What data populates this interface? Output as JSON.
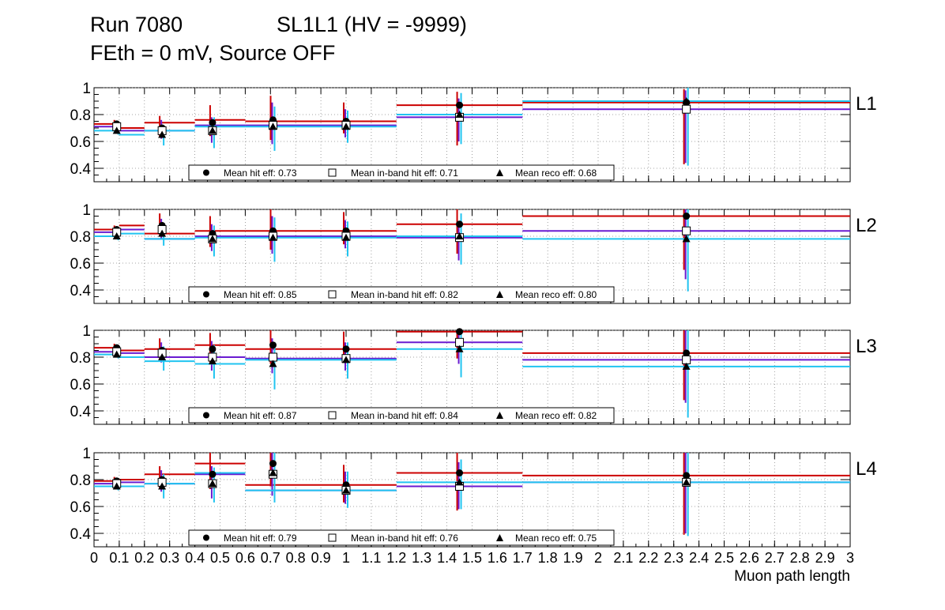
{
  "title": {
    "run": "Run 7080",
    "chamber": "SL1L1 (HV = -9999)",
    "conditions": "FEth = 0 mV, Source OFF"
  },
  "chart_data": {
    "type": "scatter",
    "xlabel": "Muon path length",
    "xlim": [
      0,
      3
    ],
    "ylim": [
      0.3,
      1.0
    ],
    "x_tick_labels": [
      "0",
      "0.1",
      "0.2",
      "0.3",
      "0.4",
      "0.5",
      "0.6",
      "0.7",
      "0.8",
      "0.9",
      "1",
      "1.1",
      "1.2",
      "1.3",
      "1.4",
      "1.5",
      "1.6",
      "1.7",
      "1.8",
      "1.9",
      "2",
      "2.1",
      "2.2",
      "2.3",
      "2.4",
      "2.5",
      "2.6",
      "2.7",
      "2.8",
      "2.9",
      "3"
    ],
    "y_ticks": [
      0.4,
      0.6,
      0.8,
      1
    ],
    "y_tick_labels": [
      "0.4",
      "0.6",
      "0.8",
      "1"
    ],
    "grid": true,
    "colors": {
      "hit": "#cc0000",
      "inband": "#6a1bd1",
      "reco": "#21c4f0",
      "marker": "#000000"
    },
    "bins": [
      [
        0.0,
        0.1
      ],
      [
        0.1,
        0.2
      ],
      [
        0.2,
        0.4
      ],
      [
        0.4,
        0.6
      ],
      [
        0.6,
        1.2
      ],
      [
        1.2,
        1.7
      ],
      [
        1.7,
        3.0
      ]
    ],
    "bin_centers": [
      0.09,
      0.27,
      0.47,
      0.71,
      1.0,
      1.45,
      2.35
    ],
    "legend": {
      "hit": "Mean hit  eff: ",
      "inband": "Mean in-band hit eff: ",
      "reco": "Mean reco eff: "
    },
    "panels": [
      {
        "name": "L1",
        "mean_hit": "0.73",
        "mean_inband": "0.71",
        "mean_reco": "0.68",
        "hit": {
          "values": [
            0.73,
            0.7,
            0.74,
            0.76,
            0.75,
            0.87,
            0.89
          ],
          "err_lo": [
            0.03,
            0.06,
            0.1,
            0.15,
            0.09,
            0.3,
            0.46
          ],
          "err_hi": [
            0.03,
            0.09,
            0.13,
            0.18,
            0.14,
            0.1,
            0.1
          ]
        },
        "inband": {
          "values": [
            0.71,
            0.68,
            0.68,
            0.72,
            0.72,
            0.78,
            0.84
          ],
          "err_lo": [
            0.03,
            0.06,
            0.09,
            0.14,
            0.09,
            0.18,
            0.4
          ],
          "err_hi": [
            0.03,
            0.08,
            0.1,
            0.17,
            0.12,
            0.14,
            0.14
          ]
        },
        "reco": {
          "values": [
            0.68,
            0.65,
            0.68,
            0.71,
            0.71,
            0.8,
            0.9
          ],
          "err_lo": [
            0.03,
            0.08,
            0.13,
            0.18,
            0.12,
            0.22,
            0.48
          ],
          "err_hi": [
            0.03,
            0.07,
            0.1,
            0.15,
            0.12,
            0.16,
            0.1
          ]
        }
      },
      {
        "name": "L2",
        "mean_hit": "0.85",
        "mean_inband": "0.82",
        "mean_reco": "0.80",
        "hit": {
          "values": [
            0.85,
            0.88,
            0.82,
            0.84,
            0.84,
            0.89,
            0.95
          ],
          "err_lo": [
            0.03,
            0.07,
            0.1,
            0.14,
            0.1,
            0.22,
            0.4
          ],
          "err_hi": [
            0.03,
            0.09,
            0.13,
            0.16,
            0.14,
            0.11,
            0.05
          ]
        },
        "inband": {
          "values": [
            0.83,
            0.85,
            0.78,
            0.8,
            0.8,
            0.79,
            0.84
          ],
          "err_lo": [
            0.03,
            0.07,
            0.09,
            0.13,
            0.09,
            0.17,
            0.36
          ],
          "err_hi": [
            0.03,
            0.08,
            0.11,
            0.15,
            0.12,
            0.12,
            0.16
          ]
        },
        "reco": {
          "values": [
            0.8,
            0.82,
            0.78,
            0.79,
            0.79,
            0.8,
            0.78
          ],
          "err_lo": [
            0.03,
            0.09,
            0.13,
            0.18,
            0.14,
            0.21,
            0.39
          ],
          "err_hi": [
            0.03,
            0.08,
            0.1,
            0.15,
            0.12,
            0.17,
            0.22
          ]
        }
      },
      {
        "name": "L3",
        "mean_hit": "0.87",
        "mean_inband": "0.84",
        "mean_reco": "0.82",
        "hit": {
          "values": [
            0.87,
            0.85,
            0.86,
            0.89,
            0.86,
            0.99,
            0.83
          ],
          "err_lo": [
            0.03,
            0.07,
            0.11,
            0.14,
            0.1,
            0.2,
            0.35
          ],
          "err_hi": [
            0.03,
            0.09,
            0.12,
            0.14,
            0.13,
            0.01,
            0.17
          ]
        },
        "inband": {
          "values": [
            0.84,
            0.83,
            0.8,
            0.8,
            0.79,
            0.91,
            0.78
          ],
          "err_lo": [
            0.03,
            0.07,
            0.1,
            0.12,
            0.09,
            0.16,
            0.32
          ],
          "err_hi": [
            0.03,
            0.08,
            0.12,
            0.14,
            0.12,
            0.09,
            0.22
          ]
        },
        "reco": {
          "values": [
            0.82,
            0.8,
            0.77,
            0.75,
            0.78,
            0.86,
            0.73
          ],
          "err_lo": [
            0.03,
            0.1,
            0.13,
            0.19,
            0.14,
            0.21,
            0.38
          ],
          "err_hi": [
            0.03,
            0.08,
            0.12,
            0.16,
            0.13,
            0.14,
            0.27
          ]
        }
      },
      {
        "name": "L4",
        "mean_hit": "0.79",
        "mean_inband": "0.76",
        "mean_reco": "0.75",
        "hit": {
          "values": [
            0.79,
            0.8,
            0.84,
            0.92,
            0.76,
            0.85,
            0.83
          ],
          "err_lo": [
            0.03,
            0.07,
            0.11,
            0.17,
            0.13,
            0.28,
            0.44
          ],
          "err_hi": [
            0.03,
            0.1,
            0.16,
            0.08,
            0.15,
            0.15,
            0.17
          ]
        },
        "inband": {
          "values": [
            0.77,
            0.78,
            0.77,
            0.84,
            0.72,
            0.75,
            0.78
          ],
          "err_lo": [
            0.03,
            0.07,
            0.11,
            0.16,
            0.1,
            0.17,
            0.38
          ],
          "err_hi": [
            0.03,
            0.09,
            0.13,
            0.16,
            0.14,
            0.18,
            0.22
          ]
        },
        "reco": {
          "values": [
            0.75,
            0.75,
            0.77,
            0.85,
            0.72,
            0.78,
            0.78
          ],
          "err_lo": [
            0.03,
            0.09,
            0.14,
            0.22,
            0.13,
            0.2,
            0.4
          ],
          "err_hi": [
            0.03,
            0.09,
            0.12,
            0.15,
            0.14,
            0.17,
            0.22
          ]
        }
      }
    ]
  }
}
